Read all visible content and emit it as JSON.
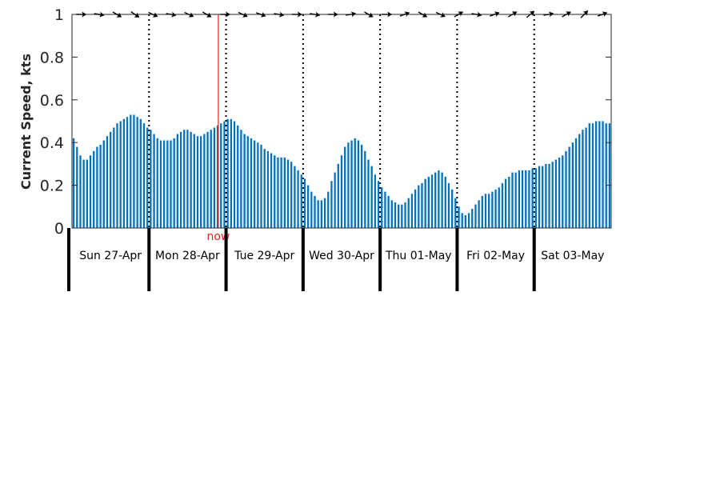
{
  "chart_data": {
    "type": "bar",
    "ylabel": "Current Speed, kts",
    "ylim": [
      0,
      1
    ],
    "yticks": [
      0,
      0.2,
      0.4,
      0.6,
      0.8,
      1
    ],
    "ytick_labels": [
      "0",
      "0.2",
      "0.4",
      "0.6",
      "0.8",
      "1"
    ],
    "x_unit": "days from Sun 27-Apr 00:00",
    "xlim": [
      0,
      7
    ],
    "day_labels": [
      "Sun 27-Apr",
      "Mon 28-Apr",
      "Tue 29-Apr",
      "Wed 30-Apr",
      "Thu 01-May",
      "Fri 02-May",
      "Sat 03-May"
    ],
    "now": {
      "x": 1.9,
      "label": "now"
    },
    "series": [
      {
        "values": [
          0.42,
          0.38,
          0.34,
          0.32,
          0.32,
          0.34,
          0.36,
          0.38,
          0.39,
          0.41,
          0.43,
          0.45,
          0.47,
          0.49,
          0.5,
          0.51,
          0.52,
          0.53,
          0.53,
          0.52,
          0.51,
          0.49,
          0.47,
          0.46,
          0.44,
          0.42,
          0.41,
          0.41,
          0.41,
          0.41,
          0.42,
          0.44,
          0.45,
          0.46,
          0.46,
          0.45,
          0.44,
          0.43,
          0.43,
          0.44,
          0.45,
          0.46,
          0.47,
          0.48,
          0.49,
          0.5,
          0.51,
          0.51,
          0.5,
          0.48,
          0.46,
          0.44,
          0.43,
          0.42,
          0.41,
          0.4,
          0.39,
          0.37,
          0.36,
          0.35,
          0.34,
          0.33,
          0.33,
          0.33,
          0.32,
          0.31,
          0.29,
          0.27,
          0.25,
          0.23,
          0.2,
          0.17,
          0.15,
          0.13,
          0.13,
          0.14,
          0.17,
          0.22,
          0.26,
          0.3,
          0.34,
          0.38,
          0.4,
          0.41,
          0.42,
          0.41,
          0.39,
          0.36,
          0.32,
          0.29,
          0.25,
          0.22,
          0.19,
          0.17,
          0.15,
          0.13,
          0.12,
          0.11,
          0.11,
          0.12,
          0.14,
          0.16,
          0.18,
          0.2,
          0.21,
          0.23,
          0.24,
          0.25,
          0.26,
          0.27,
          0.26,
          0.24,
          0.21,
          0.18,
          0.14,
          0.1,
          0.07,
          0.06,
          0.07,
          0.09,
          0.11,
          0.13,
          0.15,
          0.16,
          0.16,
          0.17,
          0.18,
          0.19,
          0.21,
          0.23,
          0.24,
          0.26,
          0.26,
          0.27,
          0.27,
          0.27,
          0.27,
          0.28,
          0.28,
          0.29,
          0.29,
          0.3,
          0.3,
          0.31,
          0.32,
          0.33,
          0.34,
          0.36,
          0.38,
          0.4,
          0.42,
          0.44,
          0.46,
          0.47,
          0.49,
          0.49,
          0.5,
          0.5,
          0.5,
          0.49,
          0.49
        ]
      }
    ],
    "direction_arrows": [
      90,
      100,
      120,
      125,
      115,
      100,
      115,
      120,
      90,
      115,
      110,
      100,
      90,
      100,
      90,
      80,
      120,
      90,
      70,
      120,
      115,
      60,
      100,
      70,
      60,
      50,
      80,
      60,
      45,
      70
    ]
  },
  "colors": {
    "bar": "#0072bd",
    "now_line": "#e8201c",
    "axis": "#262626",
    "arrow": "#000000"
  }
}
